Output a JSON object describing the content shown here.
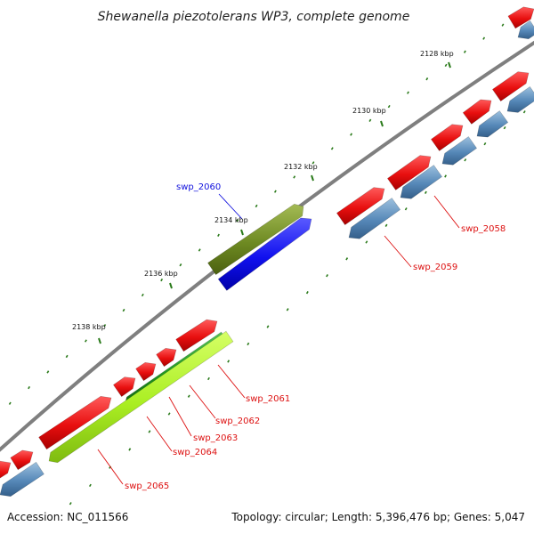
{
  "title": "Shewanella piezotolerans WP3, complete genome",
  "footer": {
    "accession": "Accession: NC_011566",
    "summary": "Topology: circular; Length: 5,396,476 bp; Genes: 5,047"
  },
  "colors": {
    "backbone": "#7f7f7f",
    "forward_cds": "#ee1111",
    "reverse_cds": "#5588bb",
    "highlight_olive": "#6e8a22",
    "highlight_blue": "#1111ee",
    "highlight_green": "#22aa22",
    "highlight_lime": "#aaee22",
    "tick": "#2a7a1a",
    "label_red": "#dd1111",
    "label_blue": "#1111dd"
  },
  "scale": [
    {
      "label": "2128 kbp"
    },
    {
      "label": "2130 kbp"
    },
    {
      "label": "2132 kbp"
    },
    {
      "label": "2134 kbp"
    },
    {
      "label": "2136 kbp"
    },
    {
      "label": "2138 kbp"
    }
  ],
  "genes": [
    {
      "label": "swp_2058",
      "color_key": "label_red"
    },
    {
      "label": "swp_2059",
      "color_key": "label_red"
    },
    {
      "label": "swp_2060",
      "color_key": "label_blue"
    },
    {
      "label": "swp_2061",
      "color_key": "label_red"
    },
    {
      "label": "swp_2062",
      "color_key": "label_red"
    },
    {
      "label": "swp_2063",
      "color_key": "label_red"
    },
    {
      "label": "swp_2064",
      "color_key": "label_red"
    },
    {
      "label": "swp_2065",
      "color_key": "label_red"
    }
  ]
}
